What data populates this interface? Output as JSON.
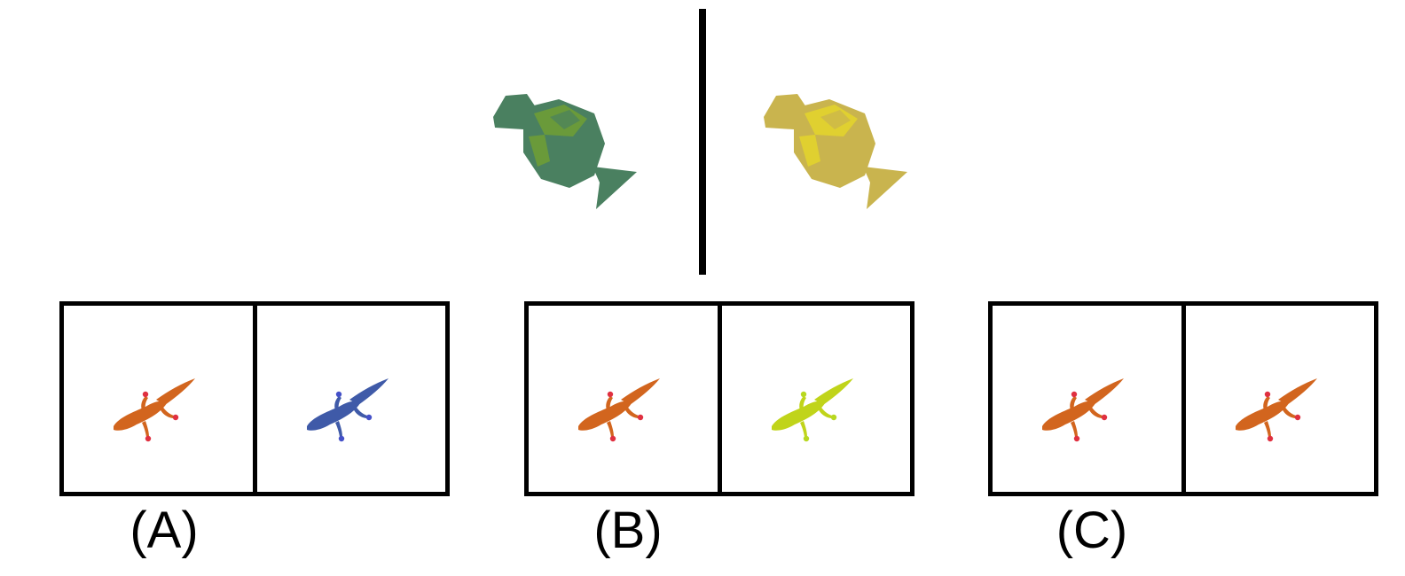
{
  "prompt": {
    "left_object": {
      "icon": "candy-icon",
      "body_color": "#4a8060",
      "accent_color": "#6a9a3a"
    },
    "right_object": {
      "icon": "candy-icon",
      "body_color": "#c9b44e",
      "accent_color": "#e0d030"
    }
  },
  "options": [
    {
      "label": "(A)",
      "panels": [
        {
          "icon": "gecko-icon",
          "color": "#d2651e",
          "accent": "#e03040"
        },
        {
          "icon": "gecko-icon",
          "color": "#3f5aa8",
          "accent": "#4450c8"
        }
      ]
    },
    {
      "label": "(B)",
      "panels": [
        {
          "icon": "gecko-icon",
          "color": "#d2651e",
          "accent": "#e03040"
        },
        {
          "icon": "gecko-icon",
          "color": "#c0d41a",
          "accent": "#b8d820"
        }
      ]
    },
    {
      "label": "(C)",
      "panels": [
        {
          "icon": "gecko-icon",
          "color": "#d2651e",
          "accent": "#e03040"
        },
        {
          "icon": "gecko-icon",
          "color": "#d2651e",
          "accent": "#e03040"
        }
      ]
    }
  ]
}
